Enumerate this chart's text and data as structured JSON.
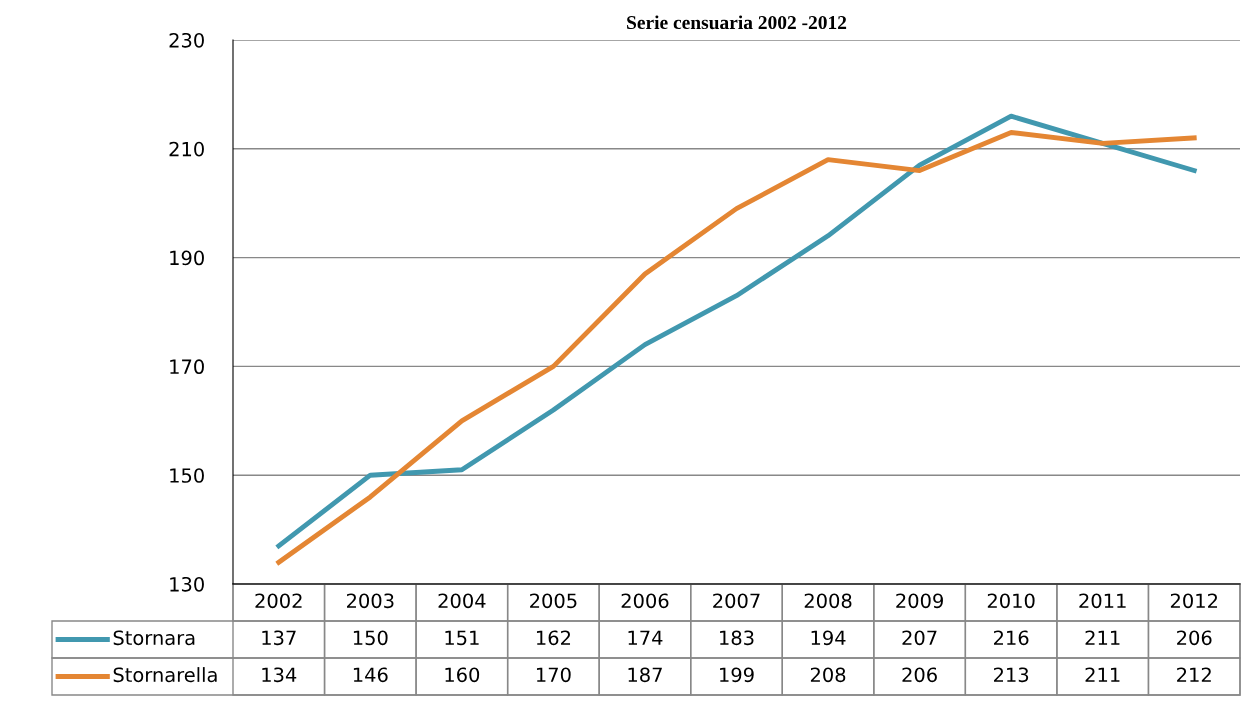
{
  "chart_data": {
    "type": "line",
    "title": "Serie censuaria 2002 -2012",
    "categories": [
      "2002",
      "2003",
      "2004",
      "2005",
      "2006",
      "2007",
      "2008",
      "2009",
      "2010",
      "2011",
      "2012"
    ],
    "series": [
      {
        "name": "Stornara",
        "color": "#4198af",
        "values": [
          137,
          150,
          151,
          162,
          174,
          183,
          194,
          207,
          216,
          211,
          206
        ]
      },
      {
        "name": "Stornarella",
        "color": "#e48633",
        "values": [
          134,
          146,
          160,
          170,
          187,
          199,
          208,
          206,
          213,
          211,
          212
        ]
      }
    ],
    "ylim": [
      130,
      230
    ],
    "yticks": [
      130,
      150,
      170,
      190,
      210,
      230
    ],
    "grid": "y",
    "legend": "bottom",
    "data_labels": true,
    "marker": "none",
    "line_style": "solid"
  }
}
